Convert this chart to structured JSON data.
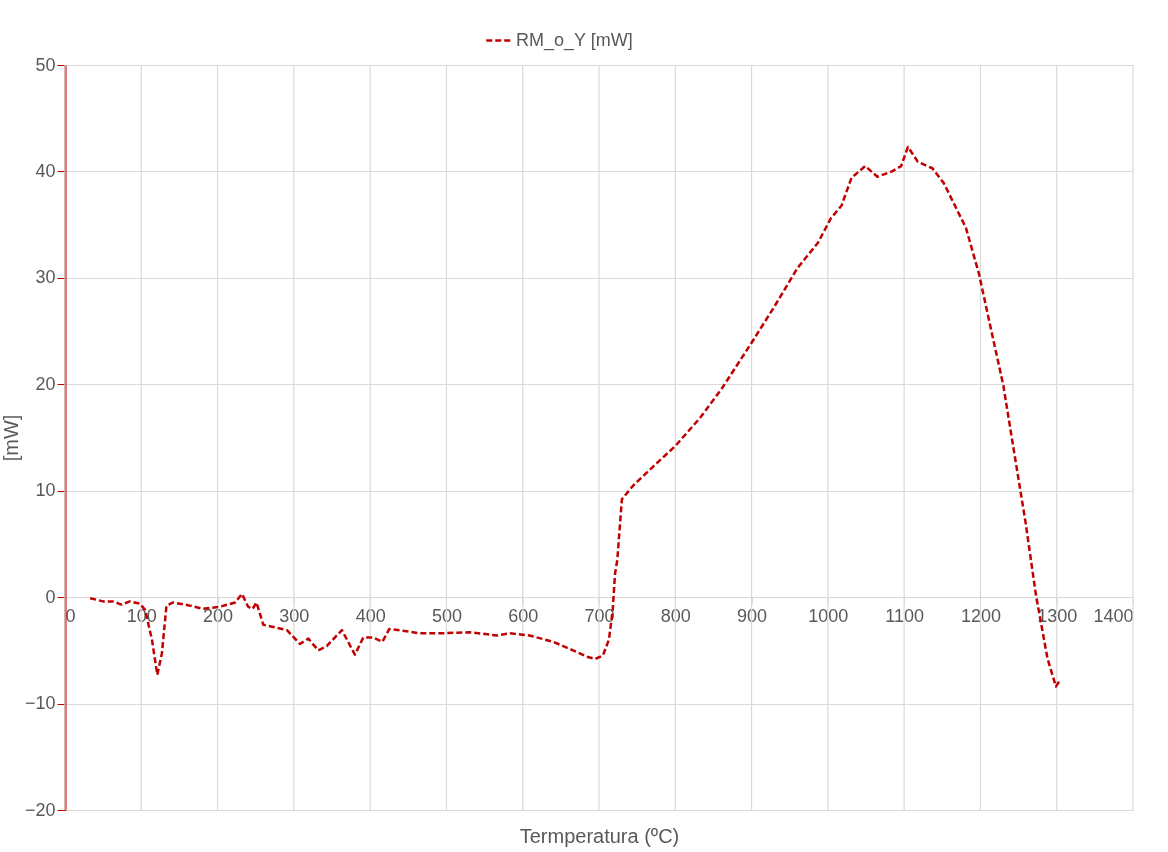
{
  "chart_data": {
    "type": "line",
    "xlabel": "Termperatura (ºC)",
    "ylabel": "[mW]",
    "xlim": [
      0,
      1400
    ],
    "ylim": [
      -20,
      50
    ],
    "xticks": [
      0,
      100,
      200,
      300,
      400,
      500,
      600,
      700,
      800,
      900,
      1000,
      1100,
      1200,
      1300,
      1400
    ],
    "yticks": [
      -20,
      -10,
      0,
      10,
      20,
      30,
      40,
      50
    ],
    "grid": true,
    "legend": "top",
    "marker": "none",
    "line_style": "dashed",
    "x": [
      33,
      50,
      63,
      74,
      85,
      98,
      105,
      114,
      121,
      127,
      133,
      142,
      164,
      181,
      203,
      223,
      232,
      240,
      246,
      251,
      260,
      273,
      291,
      308,
      319,
      332,
      343,
      363,
      380,
      391,
      404,
      416,
      425,
      448,
      465,
      491,
      531,
      566,
      583,
      609,
      640,
      666,
      684,
      695,
      705,
      713,
      718,
      721,
      724,
      730,
      745,
      770,
      800,
      832,
      861,
      900,
      929,
      960,
      987,
      1004,
      1018,
      1031,
      1049,
      1065,
      1084,
      1096,
      1105,
      1118,
      1137,
      1152,
      1181,
      1198,
      1215,
      1230,
      1244,
      1259,
      1273,
      1288,
      1299,
      1305
    ],
    "series": [
      {
        "name": "RM_o_Y [mW]",
        "color": "#c00000",
        "values": [
          -0.1,
          -0.4,
          -0.4,
          -0.7,
          -0.4,
          -0.6,
          -1.2,
          -4,
          -7.3,
          -5.3,
          -0.8,
          -0.5,
          -0.8,
          -1.1,
          -0.9,
          -0.5,
          0.3,
          -0.9,
          -1.1,
          -0.5,
          -2.6,
          -2.8,
          -3.1,
          -4.4,
          -3.9,
          -5,
          -4.6,
          -3.1,
          -5.4,
          -3.8,
          -3.8,
          -4.2,
          -3,
          -3.2,
          -3.4,
          -3.4,
          -3.3,
          -3.6,
          -3.4,
          -3.6,
          -4.2,
          -5,
          -5.6,
          -5.8,
          -5.5,
          -4,
          -1.2,
          2.2,
          3.5,
          9.2,
          10.5,
          12.2,
          14.2,
          16.8,
          19.6,
          23.9,
          27.2,
          30.9,
          33.3,
          35.6,
          36.8,
          39.4,
          40.5,
          39.5,
          40,
          40.5,
          42.3,
          40.9,
          40.3,
          38.9,
          34.7,
          30.4,
          24.8,
          19.9,
          13.7,
          7.1,
          0.1,
          -5.8,
          -8.4,
          -7.7
        ]
      }
    ]
  }
}
